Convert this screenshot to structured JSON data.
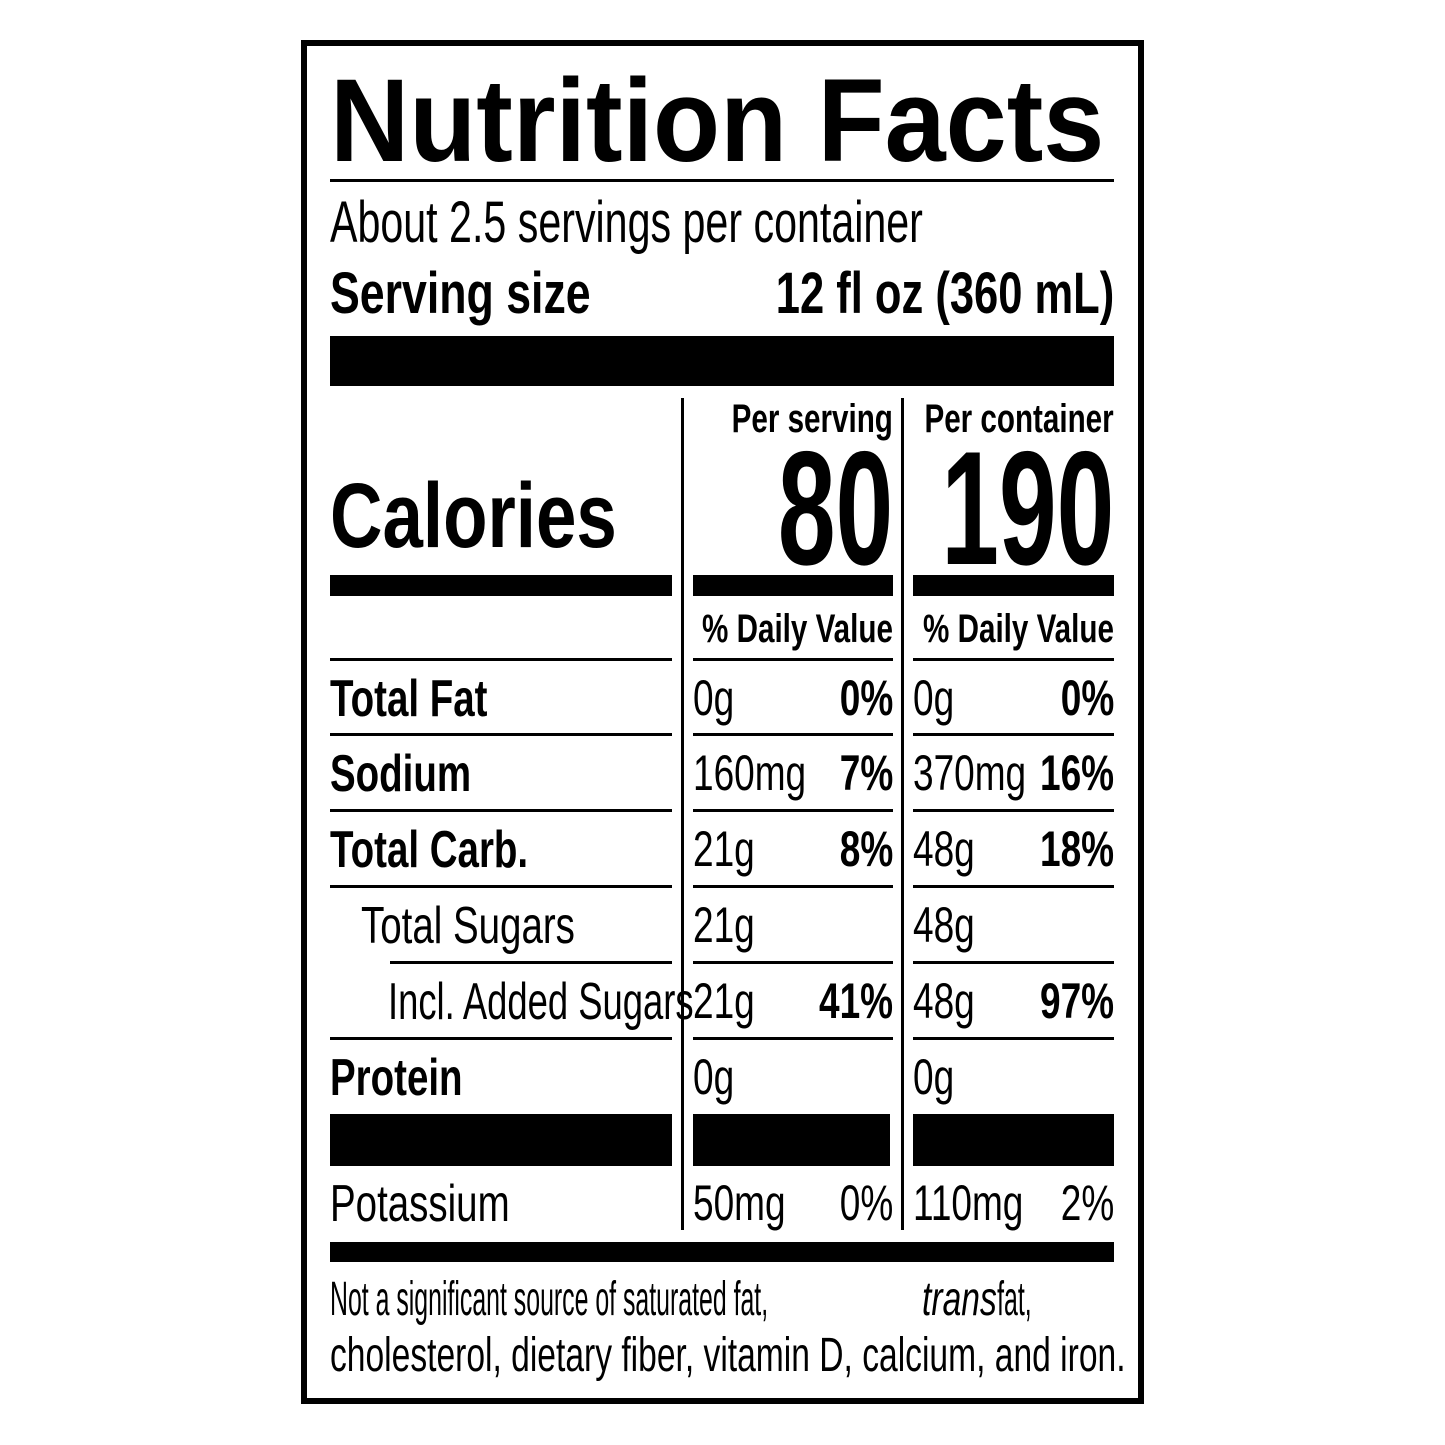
{
  "title": "Nutrition Facts",
  "servings_per_container": "About 2.5 servings per container",
  "serving_size_label": "Serving size",
  "serving_size_value": "12 fl oz (360 mL)",
  "calories_label": "Calories",
  "columns": [
    {
      "header": "Per serving",
      "calories": "80",
      "dv_header": "% Daily Value"
    },
    {
      "header": "Per container",
      "calories": "190",
      "dv_header": "% Daily Value"
    }
  ],
  "rows": [
    {
      "label": "Total Fat",
      "serving_amount": "0g",
      "serving_dv": "0%",
      "container_amount": "0g",
      "container_dv": "0%"
    },
    {
      "label": "Sodium",
      "serving_amount": "160mg",
      "serving_dv": "7%",
      "container_amount": "370mg",
      "container_dv": "16%"
    },
    {
      "label": "Total Carb.",
      "serving_amount": "21g",
      "serving_dv": "8%",
      "container_amount": "48g",
      "container_dv": "18%"
    },
    {
      "label": "Total Sugars",
      "serving_amount": "21g",
      "serving_dv": "",
      "container_amount": "48g",
      "container_dv": ""
    },
    {
      "label": "Incl. Added Sugars",
      "serving_amount": "21g",
      "serving_dv": "41%",
      "container_amount": "48g",
      "container_dv": "97%"
    },
    {
      "label": "Protein",
      "serving_amount": "0g",
      "serving_dv": "",
      "container_amount": "0g",
      "container_dv": ""
    },
    {
      "label": "Potassium",
      "serving_amount": "50mg",
      "serving_dv": "0%",
      "container_amount": "110mg",
      "container_dv": "2%"
    }
  ],
  "footnote": {
    "line1_a": "Not a significant source of saturated fat, ",
    "line1_italic": "trans",
    "line1_b": " fat,",
    "line2": "cholesterol, dietary fiber, vitamin D, calcium, and iron."
  }
}
